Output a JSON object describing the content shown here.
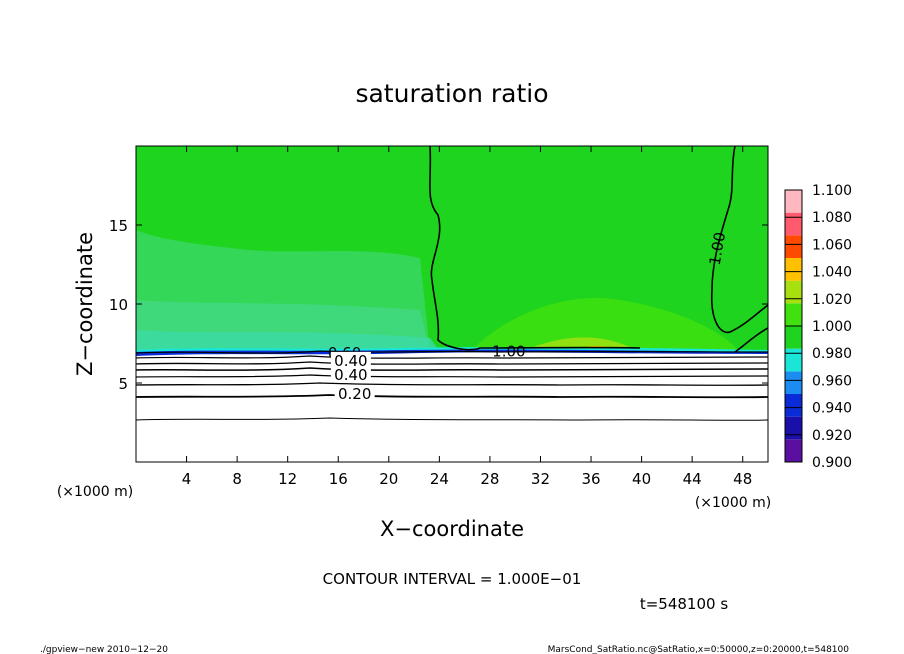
{
  "chart_data": {
    "type": "heatmap",
    "title": "saturation ratio",
    "xlabel": "X−coordinate",
    "ylabel": "Z−coordinate",
    "x_unit_left": "(×1000 m)",
    "x_unit_right": "(×1000 m)",
    "xlim": [
      0,
      50
    ],
    "ylim": [
      0,
      20
    ],
    "x_ticks": [
      4,
      8,
      12,
      16,
      20,
      24,
      28,
      32,
      36,
      40,
      44,
      48
    ],
    "x_tick_labels": [
      "4",
      "8",
      "12",
      "16",
      "20",
      "24",
      "28",
      "32",
      "36",
      "40",
      "44",
      "48"
    ],
    "y_ticks": [
      5,
      10,
      15
    ],
    "y_tick_labels": [
      "5",
      "10",
      "15"
    ],
    "contour_labels": [
      {
        "text": "1.00",
        "x": 29.5,
        "z": 7.0
      },
      {
        "text": "1.00",
        "x": 46.0,
        "z": 13.5
      },
      {
        "text": "0.60",
        "x": 16.5,
        "z": 6.9
      },
      {
        "text": "0.40",
        "x": 17.0,
        "z": 6.4
      },
      {
        "text": "0.40",
        "x": 17.0,
        "z": 5.5
      },
      {
        "text": "0.20",
        "x": 17.3,
        "z": 4.3
      }
    ],
    "colorbar": {
      "levels": [
        0.9,
        0.92,
        0.94,
        0.96,
        0.98,
        1.0,
        1.02,
        1.04,
        1.06,
        1.08,
        1.1
      ],
      "labels": [
        "0.900",
        "0.920",
        "0.940",
        "0.960",
        "0.980",
        "1.000",
        "1.020",
        "1.040",
        "1.060",
        "1.080",
        "1.100"
      ],
      "colors": [
        "#5b0fa0",
        "#1a0fa8",
        "#0a2cd8",
        "#1a8cf2",
        "#19e6d6",
        "#1fd41f",
        "#41e10f",
        "#a8e00f",
        "#ffc000",
        "#ff4a00",
        "#ff5a6e",
        "#ffb8c0"
      ]
    },
    "contour_interval_text": "CONTOUR INTERVAL = 1.000E−01",
    "time_text": "t=548100 s"
  },
  "footer": {
    "left": "./gpview−new  2010−12−20",
    "right": "MarsCond_SatRatio.nc@SatRatio,x=0:50000,z=0:20000,t=548100"
  }
}
